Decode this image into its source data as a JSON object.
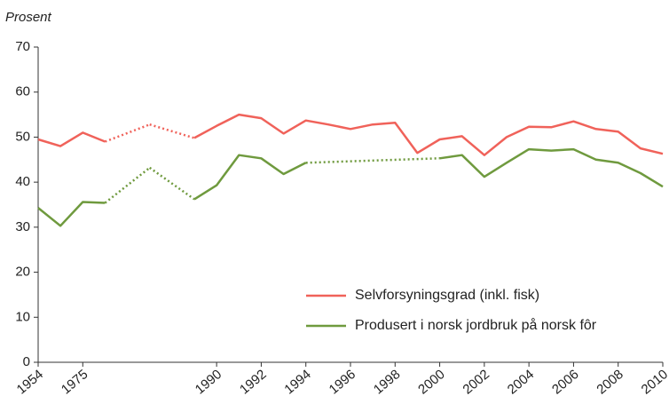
{
  "chart_data": {
    "type": "line",
    "ylabel": "Prosent",
    "categories": [
      "1954",
      null,
      "1975",
      null,
      null,
      null,
      null,
      null,
      "1990",
      null,
      "1992",
      null,
      "1994",
      null,
      "1996",
      null,
      "1998",
      null,
      "2000",
      null,
      "2002",
      null,
      "2004",
      null,
      "2006",
      null,
      "2008",
      null,
      "2010"
    ],
    "series": [
      {
        "name": "Selvforsyningsgrad (inkl. fisk)",
        "color": "#f0625a",
        "values": [
          49.5,
          48,
          51,
          49,
          null,
          52.8,
          null,
          49.8,
          52.5,
          55,
          54.2,
          50.8,
          53.7,
          52.8,
          51.8,
          52.8,
          53.2,
          46.5,
          49.5,
          50.2,
          46,
          50,
          52.3,
          52.2,
          53.5,
          51.8,
          51.2,
          47.5,
          46.3
        ]
      },
      {
        "name": "Produsert i norsk jordbruk på norsk fôr",
        "color": "#6f9a3e",
        "values": [
          34.3,
          30.3,
          35.6,
          35.4,
          null,
          43.2,
          null,
          36.2,
          39.3,
          46,
          45.3,
          41.8,
          44.3,
          null,
          null,
          null,
          null,
          null,
          45.3,
          46,
          41.2,
          44.3,
          47.3,
          47,
          47.3,
          45,
          44.3,
          42,
          39
        ]
      }
    ],
    "ylim": [
      0,
      70
    ],
    "yticks": [
      0,
      10,
      20,
      30,
      40,
      50,
      60,
      70
    ],
    "legend": "lower right"
  }
}
